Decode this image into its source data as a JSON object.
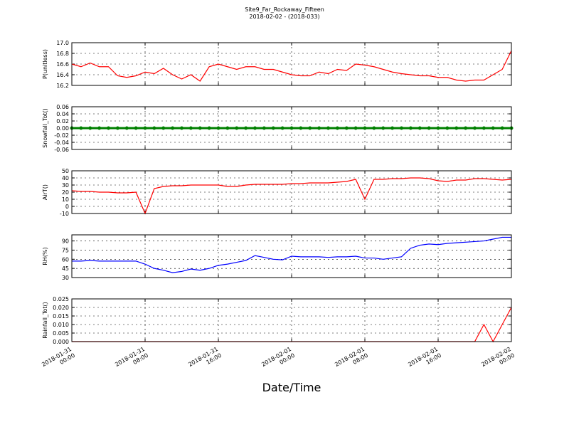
{
  "chart_data": {
    "type": "line",
    "title": "Site9_Far_Rockaway_Fifteen",
    "subtitle": "2018-02-02 - (2018-033)",
    "x_label": "Date/Time",
    "xlim": [
      "2018-01-31 00:00",
      "2018-02-02 00:00"
    ],
    "xticks": [
      "2018-01-31 00:00",
      "2018-01-31 08:00",
      "2018-01-31 16:00",
      "2018-02-01 00:00",
      "2018-02-01 08:00",
      "2018-02-01 16:00",
      "2018-02-02 00:00"
    ],
    "grid": true,
    "x": [
      "2018-01-31 00:00",
      "2018-01-31 01:00",
      "2018-01-31 02:00",
      "2018-01-31 03:00",
      "2018-01-31 04:00",
      "2018-01-31 05:00",
      "2018-01-31 06:00",
      "2018-01-31 07:00",
      "2018-01-31 08:00",
      "2018-01-31 09:00",
      "2018-01-31 10:00",
      "2018-01-31 11:00",
      "2018-01-31 12:00",
      "2018-01-31 13:00",
      "2018-01-31 14:00",
      "2018-01-31 15:00",
      "2018-01-31 16:00",
      "2018-01-31 17:00",
      "2018-01-31 18:00",
      "2018-01-31 19:00",
      "2018-01-31 20:00",
      "2018-01-31 21:00",
      "2018-01-31 22:00",
      "2018-01-31 23:00",
      "2018-02-01 00:00",
      "2018-02-01 01:00",
      "2018-02-01 02:00",
      "2018-02-01 03:00",
      "2018-02-01 04:00",
      "2018-02-01 05:00",
      "2018-02-01 06:00",
      "2018-02-01 07:00",
      "2018-02-01 08:00",
      "2018-02-01 09:00",
      "2018-02-01 10:00",
      "2018-02-01 11:00",
      "2018-02-01 12:00",
      "2018-02-01 13:00",
      "2018-02-01 14:00",
      "2018-02-01 15:00",
      "2018-02-01 16:00",
      "2018-02-01 17:00",
      "2018-02-01 18:00",
      "2018-02-01 19:00",
      "2018-02-01 20:00",
      "2018-02-01 21:00",
      "2018-02-01 22:00",
      "2018-02-01 23:00",
      "2018-02-02 00:00"
    ],
    "panels": [
      {
        "y_label": "P(unitless)",
        "ylim": [
          16.2,
          17.0
        ],
        "yticks": [
          16.2,
          16.4,
          16.6,
          16.8,
          {
            "value": 17.0,
            "label": "17.0"
          }
        ],
        "series": [
          {
            "color": "#ff0000",
            "marker": false,
            "values": [
              16.6,
              16.55,
              16.62,
              16.55,
              16.55,
              16.38,
              16.35,
              16.38,
              16.45,
              16.42,
              16.52,
              16.4,
              16.32,
              16.4,
              16.28,
              16.55,
              16.6,
              16.55,
              16.5,
              16.55,
              16.55,
              16.5,
              16.5,
              16.45,
              16.4,
              16.38,
              16.38,
              16.45,
              16.42,
              16.5,
              16.48,
              16.6,
              16.58,
              16.55,
              16.5,
              16.45,
              16.42,
              16.4,
              16.38,
              16.38,
              16.35,
              16.35,
              16.3,
              16.28,
              16.3,
              16.3,
              16.4,
              16.5,
              16.85
            ]
          }
        ]
      },
      {
        "y_label": "Snowfall_Tot()",
        "ylim": [
          -0.06,
          0.06
        ],
        "yticks": [
          -0.06,
          -0.04,
          -0.02,
          {
            "value": 0,
            "label": "0.00"
          },
          0.02,
          0.04,
          0.06
        ],
        "series": [
          {
            "color": "#008000",
            "marker": true,
            "values": [
              0,
              0,
              0,
              0,
              0,
              0,
              0,
              0,
              0,
              0,
              0,
              0,
              0,
              0,
              0,
              0,
              0,
              0,
              0,
              0,
              0,
              0,
              0,
              0,
              0,
              0,
              0,
              0,
              0,
              0,
              0,
              0,
              0,
              0,
              0,
              0,
              0,
              0,
              0,
              0,
              0,
              0,
              0,
              0,
              0,
              0,
              0,
              0,
              0
            ]
          }
        ]
      },
      {
        "y_label": "AirT()",
        "ylim": [
          -10,
          50
        ],
        "yticks": [
          -10,
          0,
          10,
          20,
          30,
          40,
          50
        ],
        "series": [
          {
            "color": "#ff0000",
            "marker": false,
            "values": [
              22,
              21,
              21,
              20,
              20,
              19,
              19,
              20,
              -10,
              25,
              28,
              29,
              29,
              30,
              30,
              30,
              30,
              28,
              28,
              30,
              31,
              31,
              31,
              31,
              32,
              32,
              33,
              33,
              33,
              34,
              35,
              38,
              10,
              38,
              38,
              39,
              39,
              40,
              40,
              39,
              36,
              35,
              37,
              37,
              39,
              39,
              38,
              37,
              38
            ]
          }
        ]
      },
      {
        "y_label": "RH(%)",
        "ylim": [
          30,
          100
        ],
        "yticks": [
          30,
          45,
          60,
          75,
          90
        ],
        "series": [
          {
            "color": "#0000ff",
            "marker": false,
            "values": [
              57,
              57,
              58,
              57,
              57,
              57,
              57,
              57,
              52,
              45,
              42,
              38,
              40,
              44,
              42,
              45,
              50,
              52,
              55,
              58,
              66,
              63,
              60,
              59,
              65,
              64,
              64,
              64,
              63,
              64,
              64,
              65,
              62,
              62,
              60,
              62,
              64,
              78,
              83,
              85,
              84,
              86,
              87,
              88,
              89,
              90,
              93,
              96,
              96
            ]
          }
        ]
      },
      {
        "y_label": "Rainfall_Tot()",
        "ylim": [
          0,
          0.025
        ],
        "yticks": [
          {
            "value": 0,
            "label": "0.000"
          },
          0.005,
          {
            "value": 0.01,
            "label": "0.010"
          },
          0.015,
          {
            "value": 0.02,
            "label": "0.020"
          },
          0.025
        ],
        "series": [
          {
            "color": "#ff0000",
            "marker": false,
            "values": [
              0,
              0,
              0,
              0,
              0,
              0,
              0,
              0,
              0,
              0,
              0,
              0,
              0,
              0,
              0,
              0,
              0,
              0,
              0,
              0,
              0,
              0,
              0,
              0,
              0,
              0,
              0,
              0,
              0,
              0,
              0,
              0,
              0,
              0,
              0,
              0,
              0,
              0,
              0,
              0,
              0,
              0,
              0,
              0,
              0,
              0.01,
              0,
              0.01,
              0.02
            ]
          }
        ]
      }
    ]
  }
}
